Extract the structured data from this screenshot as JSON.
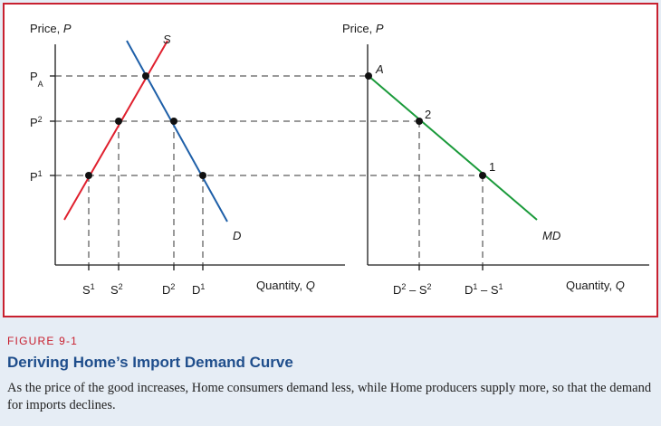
{
  "figure": {
    "label": "FIGURE 9-1",
    "title": "Deriving Home’s Import Demand Curve",
    "caption": "As the price of the good increases, Home consumers demand less, while Home producers supply more, so that the demand for imports declines."
  },
  "colors": {
    "supply": "#e0202e",
    "demand": "#1e5fa8",
    "import_demand": "#1a9a3a",
    "frame": "#c8202f",
    "title": "#1f4e8c"
  },
  "left_panel": {
    "y_axis_label": {
      "base": "Price, ",
      "var": "P"
    },
    "x_axis_label": {
      "base": "Quantity, ",
      "var": "Q"
    },
    "price_labels": {
      "pa": {
        "base": "P",
        "sub": "A"
      },
      "p2": {
        "base": "P",
        "sup": "2"
      },
      "p1": {
        "base": "P",
        "sup": "1"
      }
    },
    "quantity_labels": {
      "s1": {
        "base": "S",
        "sup": "1"
      },
      "s2": {
        "base": "S",
        "sup": "2"
      },
      "d2": {
        "base": "D",
        "sup": "2"
      },
      "d1": {
        "base": "D",
        "sup": "1"
      }
    },
    "curve_labels": {
      "supply": "S",
      "demand": "D"
    }
  },
  "right_panel": {
    "y_axis_label": {
      "base": "Price, ",
      "var": "P"
    },
    "x_axis_label": {
      "base": "Quantity, ",
      "var": "Q"
    },
    "point_labels": {
      "a": "A",
      "p2": "2",
      "p1": "1"
    },
    "curve_label": "MD",
    "quantity_labels": {
      "q2": {
        "d": "D",
        "d_sup": "2",
        "minus": " – ",
        "s": "S",
        "s_sup": "2"
      },
      "q1": {
        "d": "D",
        "d_sup": "1",
        "minus": " – ",
        "s": "S",
        "s_sup": "1"
      }
    }
  }
}
